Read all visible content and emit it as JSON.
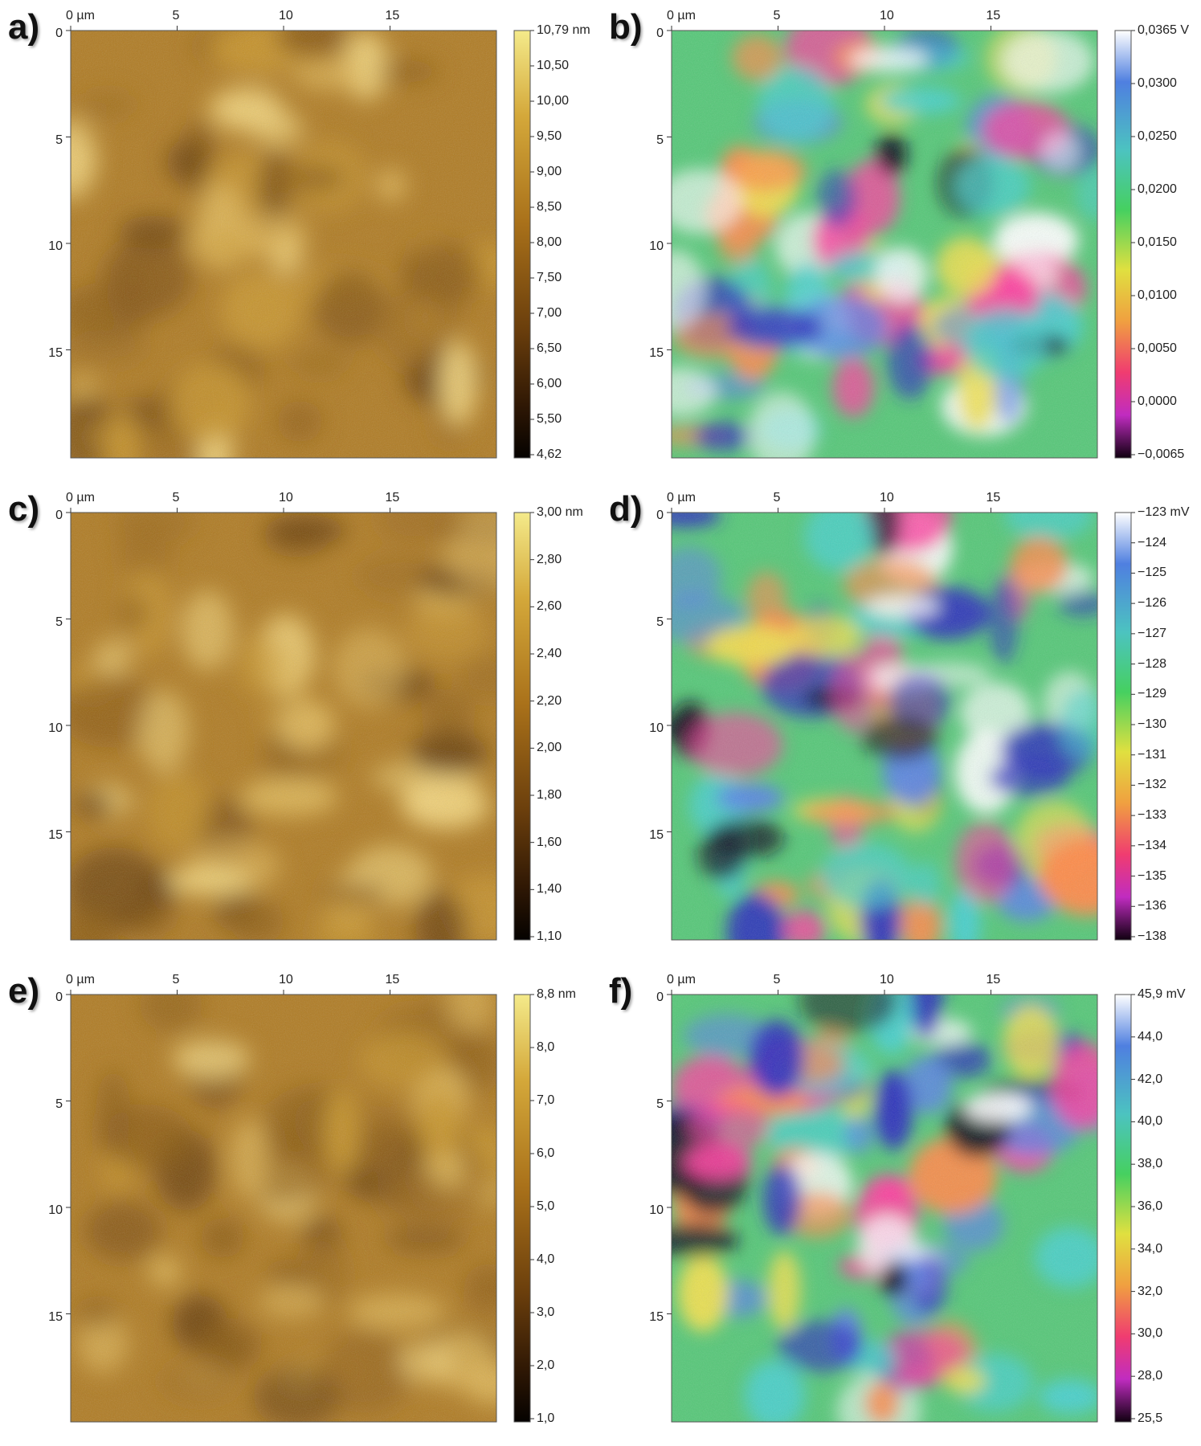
{
  "x_ticks": [
    "0 µm",
    "5",
    "10",
    "15"
  ],
  "y_ticks": [
    "0",
    "5",
    "10",
    "15"
  ],
  "panels": [
    {
      "id": "a",
      "label": "a)",
      "palette": "gold",
      "colorbar_labels": [
        "10,79 nm",
        "10,50",
        "10,00",
        "9,50",
        "9,00",
        "8,50",
        "8,00",
        "7,50",
        "7,00",
        "6,50",
        "6,00",
        "5,50",
        "4,62"
      ]
    },
    {
      "id": "b",
      "label": "b)",
      "palette": "rainbow",
      "colorbar_labels": [
        "0,0365 V",
        "0,0300",
        "0,0250",
        "0,0200",
        "0,0150",
        "0,0100",
        "0,0050",
        "0,0000",
        "−0,0065"
      ]
    },
    {
      "id": "c",
      "label": "c)",
      "palette": "gold",
      "colorbar_labels": [
        "3,00 nm",
        "2,80",
        "2,60",
        "2,40",
        "2,20",
        "2,00",
        "1,80",
        "1,60",
        "1,40",
        "1,10"
      ]
    },
    {
      "id": "d",
      "label": "d)",
      "palette": "rainbow",
      "colorbar_labels": [
        "−123 mV",
        "−124",
        "−125",
        "−126",
        "−127",
        "−128",
        "−129",
        "−130",
        "−131",
        "−132",
        "−133",
        "−134",
        "−135",
        "−136",
        "−138"
      ]
    },
    {
      "id": "e",
      "label": "e)",
      "palette": "gold",
      "colorbar_labels": [
        "8,8 nm",
        "8,0",
        "7,0",
        "6,0",
        "5,0",
        "4,0",
        "3,0",
        "2,0",
        "1,0"
      ]
    },
    {
      "id": "f",
      "label": "f)",
      "palette": "rainbow",
      "colorbar_labels": [
        "45,9 mV",
        "44,0",
        "42,0",
        "40,0",
        "38,0",
        "36,0",
        "34,0",
        "32,0",
        "30,0",
        "28,0",
        "25,5"
      ]
    }
  ]
}
